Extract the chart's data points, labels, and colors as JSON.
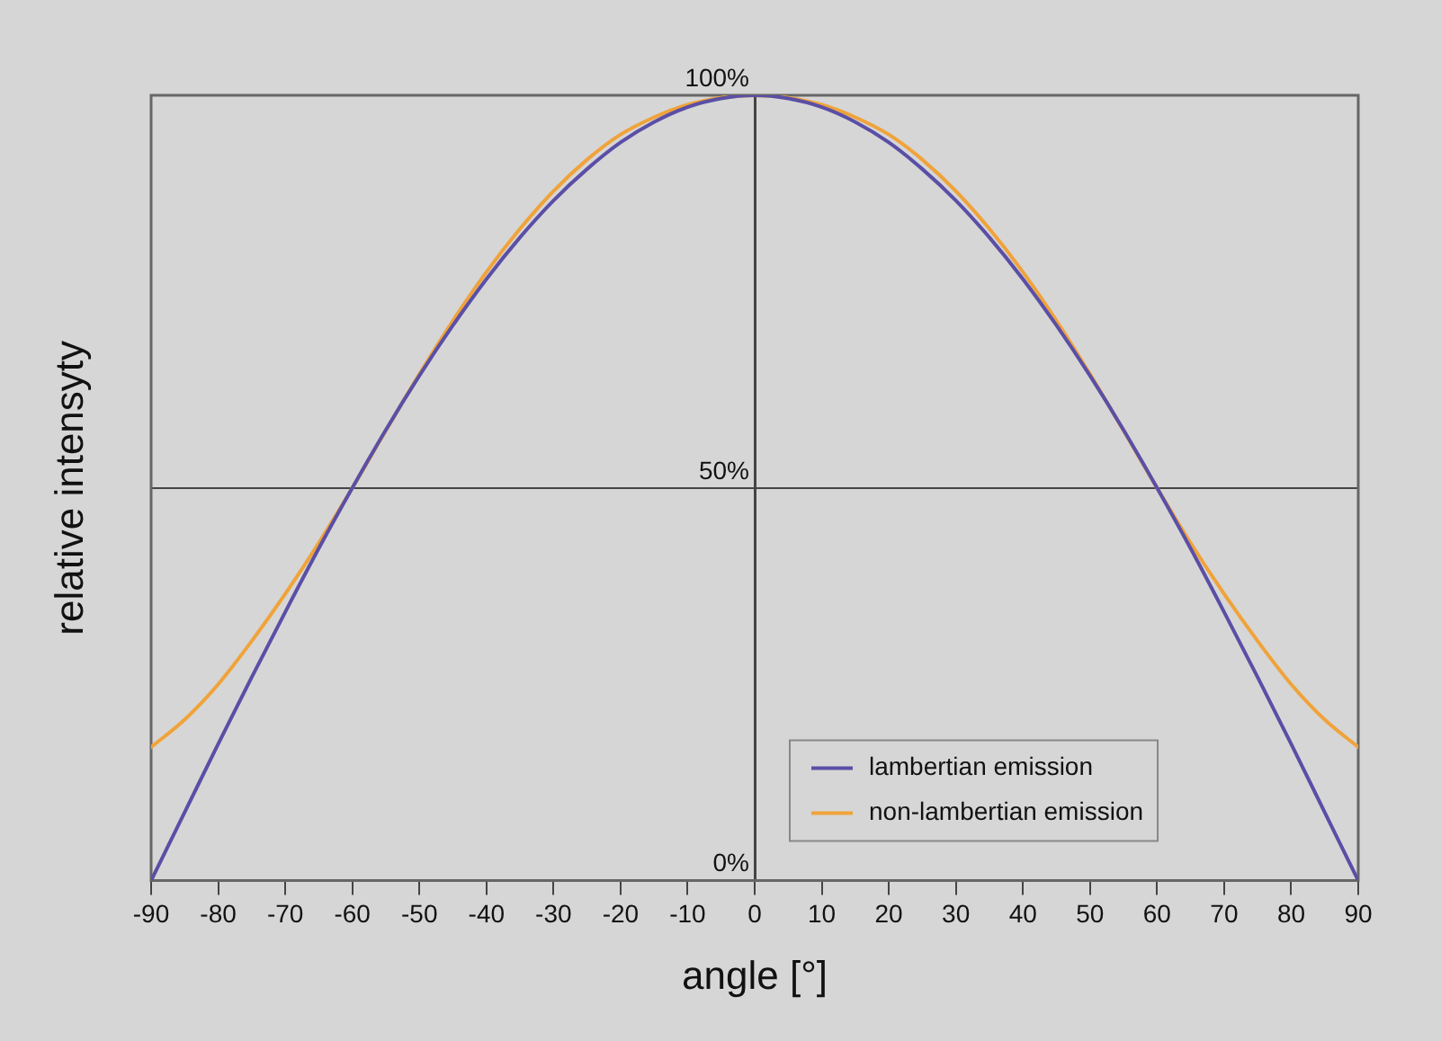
{
  "chart_data": {
    "type": "line",
    "xlabel": "angle [°]",
    "ylabel": "relative intensyty",
    "xlim": [
      -90,
      90
    ],
    "xticks": [
      -90,
      -80,
      -70,
      -60,
      -50,
      -40,
      -30,
      -20,
      -10,
      0,
      10,
      20,
      30,
      40,
      50,
      60,
      70,
      80,
      90
    ],
    "ylim": [
      0,
      100
    ],
    "yticks": [
      {
        "value": 0,
        "label": "0%"
      },
      {
        "value": 50,
        "label": "50%"
      },
      {
        "value": 100,
        "label": "100%"
      }
    ],
    "x": [
      -90,
      -85,
      -80,
      -75,
      -70,
      -65,
      -60,
      -55,
      -50,
      -45,
      -40,
      -35,
      -30,
      -25,
      -20,
      -15,
      -10,
      -5,
      0,
      5,
      10,
      15,
      20,
      25,
      30,
      35,
      40,
      45,
      50,
      55,
      60,
      65,
      70,
      75,
      80,
      85,
      90
    ],
    "series": [
      {
        "name": "lambertian emission",
        "color": "#5a4fa6",
        "values": [
          0,
          8.7,
          17.4,
          25.9,
          34.2,
          42.3,
          50,
          57.4,
          64.3,
          70.7,
          76.6,
          81.9,
          86.6,
          90.6,
          94,
          96.6,
          98.5,
          99.6,
          100,
          99.6,
          98.5,
          96.6,
          94,
          90.6,
          86.6,
          81.9,
          76.6,
          70.7,
          64.3,
          57.4,
          50,
          42.3,
          34.2,
          25.9,
          17.4,
          8.7,
          0
        ]
      },
      {
        "name": "non-lambertian emission",
        "color": "#f0a33a",
        "values": [
          17,
          20.5,
          25,
          30.5,
          36.5,
          43,
          50,
          57.3,
          64.5,
          71.3,
          77.5,
          83,
          87.8,
          91.8,
          95,
          97.2,
          98.8,
          99.7,
          100,
          99.7,
          98.8,
          97.2,
          95,
          91.8,
          87.8,
          83,
          77.5,
          71.3,
          64.5,
          57.3,
          50,
          43,
          36.5,
          30.5,
          25,
          20.5,
          17
        ]
      }
    ],
    "grid": "y",
    "legend": "bottom right",
    "line_style": "solid",
    "marker": "none"
  }
}
